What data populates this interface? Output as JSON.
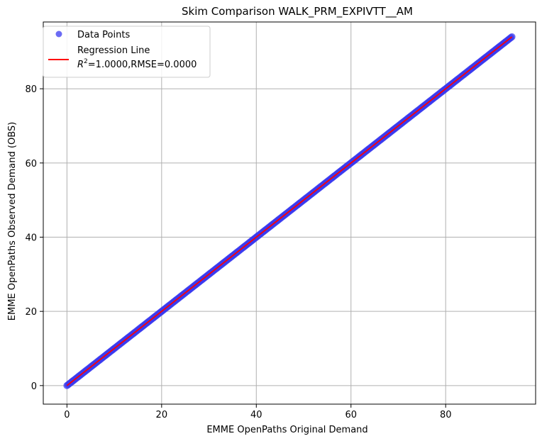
{
  "chart_data": {
    "type": "scatter",
    "title": "Skim Comparison WALK_PRM_EXPIVTT__AM",
    "xlabel": "EMME OpenPaths Original Demand",
    "ylabel": "EMME OpenPaths Observed Demand (OBS)",
    "xlim": [
      -5,
      99
    ],
    "ylim": [
      -5,
      98
    ],
    "xticks": [
      0,
      20,
      40,
      60,
      80
    ],
    "yticks": [
      0,
      20,
      40,
      60,
      80
    ],
    "grid": true,
    "legend_position": "top-left",
    "scatter_range": [
      0,
      94
    ],
    "regression": {
      "slope": 1.0,
      "intercept": 0.0,
      "x_range": [
        0,
        94
      ]
    },
    "series": [
      {
        "name": "Data Points",
        "kind": "scatter",
        "color": "#3a3af0"
      },
      {
        "name": "Regression Line",
        "kind": "line",
        "color": "#ff0000"
      }
    ],
    "legend": {
      "points_label": "Data Points",
      "line_label": "Regression Line",
      "stats_r2_prefix": "R",
      "stats_r2_sup": "2",
      "stats_rest": "=1.0000,RMSE=0.0000"
    }
  }
}
